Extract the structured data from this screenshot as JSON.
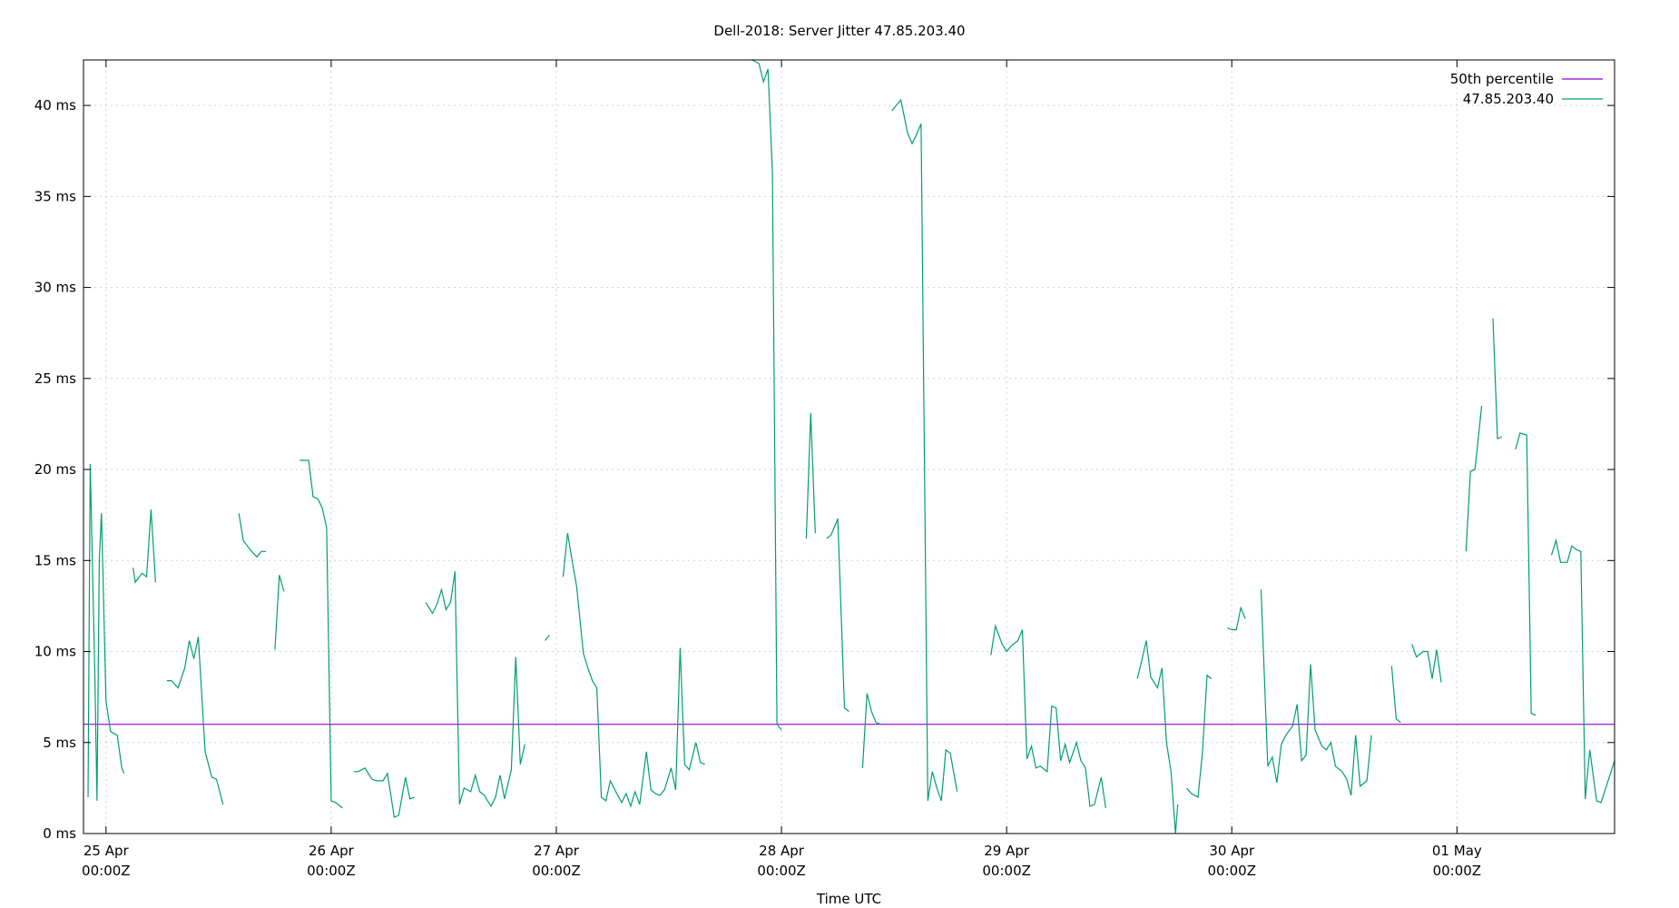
{
  "chart_data": {
    "type": "line",
    "title": "Dell-2018: Server Jitter 47.85.203.40",
    "xlabel": "Time UTC",
    "ylabel": "",
    "x_unit": "days since 25 Apr 00:00Z",
    "xlim": [
      -0.1,
      6.7
    ],
    "ylim": [
      0,
      42.5
    ],
    "y_ticks": [
      0,
      5,
      10,
      15,
      20,
      25,
      30,
      35,
      40
    ],
    "y_tick_labels": [
      "0 ms",
      "5 ms",
      "10 ms",
      "15 ms",
      "20 ms",
      "25 ms",
      "30 ms",
      "35 ms",
      "40 ms"
    ],
    "x_ticks": [
      0,
      1,
      2,
      3,
      4,
      5,
      6
    ],
    "x_tick_labels": [
      [
        "25 Apr",
        "00:00Z"
      ],
      [
        "26 Apr",
        "00:00Z"
      ],
      [
        "27 Apr",
        "00:00Z"
      ],
      [
        "28 Apr",
        "00:00Z"
      ],
      [
        "29 Apr",
        "00:00Z"
      ],
      [
        "30 Apr",
        "00:00Z"
      ],
      [
        "01 May",
        "00:00Z"
      ]
    ],
    "grid": true,
    "legend_position": "top-right",
    "series": [
      {
        "name": "50th percentile",
        "color": "#9400d3",
        "segments": [
          [
            [
              -0.1,
              6.0
            ],
            [
              6.7,
              6.0
            ]
          ]
        ]
      },
      {
        "name": "47.85.203.40",
        "color": "#009e73",
        "segments": [
          [
            [
              -0.08,
              2.0
            ],
            [
              -0.07,
              20.3
            ],
            [
              -0.05,
              9.0
            ],
            [
              -0.04,
              1.8
            ],
            [
              -0.03,
              15.0
            ],
            [
              -0.02,
              17.6
            ],
            [
              0.0,
              7.3
            ],
            [
              0.02,
              5.6
            ],
            [
              0.05,
              5.4
            ],
            [
              0.07,
              3.6
            ],
            [
              0.08,
              3.3
            ]
          ],
          [
            [
              0.12,
              14.6
            ],
            [
              0.13,
              13.8
            ],
            [
              0.16,
              14.3
            ],
            [
              0.18,
              14.1
            ],
            [
              0.2,
              17.8
            ],
            [
              0.22,
              13.8
            ]
          ],
          [
            [
              0.27,
              8.4
            ],
            [
              0.29,
              8.4
            ],
            [
              0.32,
              8.0
            ],
            [
              0.35,
              9.1
            ],
            [
              0.37,
              10.6
            ],
            [
              0.39,
              9.6
            ],
            [
              0.41,
              10.8
            ],
            [
              0.44,
              4.5
            ],
            [
              0.47,
              3.1
            ],
            [
              0.49,
              3.0
            ],
            [
              0.52,
              1.6
            ]
          ],
          [
            [
              0.59,
              17.6
            ],
            [
              0.61,
              16.1
            ],
            [
              0.64,
              15.6
            ],
            [
              0.67,
              15.2
            ],
            [
              0.69,
              15.5
            ],
            [
              0.71,
              15.5
            ]
          ],
          [
            [
              0.75,
              10.1
            ],
            [
              0.77,
              14.2
            ],
            [
              0.79,
              13.3
            ]
          ],
          [
            [
              0.86,
              20.5
            ],
            [
              0.9,
              20.5
            ],
            [
              0.92,
              18.5
            ],
            [
              0.94,
              18.4
            ],
            [
              0.96,
              17.9
            ],
            [
              0.98,
              16.8
            ],
            [
              1.0,
              1.8
            ],
            [
              1.02,
              1.7
            ],
            [
              1.05,
              1.4
            ]
          ],
          [
            [
              1.1,
              3.4
            ],
            [
              1.12,
              3.4
            ],
            [
              1.15,
              3.6
            ],
            [
              1.18,
              3.0
            ],
            [
              1.2,
              2.9
            ],
            [
              1.23,
              2.9
            ],
            [
              1.25,
              3.3
            ],
            [
              1.28,
              0.9
            ],
            [
              1.3,
              1.0
            ],
            [
              1.33,
              3.1
            ],
            [
              1.35,
              1.9
            ],
            [
              1.37,
              2.0
            ]
          ],
          [
            [
              1.42,
              12.7
            ],
            [
              1.45,
              12.1
            ],
            [
              1.47,
              12.6
            ],
            [
              1.49,
              13.4
            ],
            [
              1.51,
              12.3
            ],
            [
              1.53,
              12.7
            ],
            [
              1.55,
              14.4
            ],
            [
              1.57,
              1.6
            ],
            [
              1.59,
              2.5
            ],
            [
              1.62,
              2.3
            ],
            [
              1.64,
              3.2
            ],
            [
              1.66,
              2.3
            ],
            [
              1.68,
              2.1
            ],
            [
              1.71,
              1.5
            ],
            [
              1.73,
              2.0
            ],
            [
              1.75,
              3.2
            ],
            [
              1.77,
              1.9
            ],
            [
              1.8,
              3.5
            ],
            [
              1.82,
              9.7
            ],
            [
              1.84,
              3.8
            ],
            [
              1.86,
              4.9
            ]
          ],
          [
            [
              1.95,
              10.6
            ],
            [
              1.97,
              10.9
            ]
          ],
          [
            [
              2.03,
              14.1
            ],
            [
              2.05,
              16.5
            ],
            [
              2.07,
              15.0
            ],
            [
              2.09,
              13.6
            ],
            [
              2.12,
              9.9
            ],
            [
              2.14,
              9.1
            ],
            [
              2.16,
              8.4
            ],
            [
              2.18,
              8.0
            ],
            [
              2.2,
              2.0
            ],
            [
              2.22,
              1.8
            ],
            [
              2.24,
              2.9
            ],
            [
              2.26,
              2.4
            ],
            [
              2.29,
              1.7
            ],
            [
              2.31,
              2.2
            ],
            [
              2.33,
              1.5
            ],
            [
              2.35,
              2.3
            ],
            [
              2.37,
              1.6
            ],
            [
              2.4,
              4.5
            ],
            [
              2.42,
              2.4
            ],
            [
              2.44,
              2.2
            ],
            [
              2.46,
              2.1
            ],
            [
              2.48,
              2.4
            ],
            [
              2.51,
              3.6
            ],
            [
              2.53,
              2.4
            ],
            [
              2.55,
              10.2
            ],
            [
              2.57,
              3.8
            ],
            [
              2.59,
              3.5
            ],
            [
              2.62,
              5.0
            ],
            [
              2.64,
              3.9
            ],
            [
              2.66,
              3.8
            ]
          ],
          [
            [
              2.87,
              42.5
            ],
            [
              2.9,
              42.3
            ],
            [
              2.92,
              41.3
            ],
            [
              2.94,
              42.0
            ],
            [
              2.96,
              36.3
            ],
            [
              2.98,
              6.0
            ],
            [
              3.0,
              5.7
            ]
          ],
          [
            [
              3.11,
              16.2
            ],
            [
              3.13,
              23.1
            ],
            [
              3.15,
              16.5
            ]
          ],
          [
            [
              3.2,
              16.2
            ],
            [
              3.22,
              16.4
            ],
            [
              3.25,
              17.3
            ],
            [
              3.28,
              6.9
            ],
            [
              3.3,
              6.7
            ]
          ],
          [
            [
              3.36,
              3.6
            ],
            [
              3.38,
              7.7
            ],
            [
              3.4,
              6.7
            ],
            [
              3.42,
              6.1
            ],
            [
              3.44,
              6.0
            ]
          ],
          [
            [
              3.49,
              39.7
            ],
            [
              3.53,
              40.3
            ],
            [
              3.56,
              38.5
            ],
            [
              3.58,
              37.9
            ],
            [
              3.6,
              38.4
            ],
            [
              3.62,
              39.0
            ],
            [
              3.65,
              1.8
            ],
            [
              3.67,
              3.4
            ],
            [
              3.69,
              2.5
            ],
            [
              3.71,
              1.8
            ],
            [
              3.73,
              4.6
            ],
            [
              3.75,
              4.4
            ],
            [
              3.78,
              2.3
            ]
          ],
          [
            [
              3.93,
              9.8
            ],
            [
              3.95,
              11.4
            ],
            [
              3.98,
              10.4
            ],
            [
              4.0,
              10.0
            ],
            [
              4.02,
              10.3
            ],
            [
              4.05,
              10.6
            ],
            [
              4.07,
              11.2
            ],
            [
              4.09,
              4.1
            ],
            [
              4.11,
              4.8
            ],
            [
              4.13,
              3.6
            ],
            [
              4.15,
              3.7
            ],
            [
              4.18,
              3.4
            ],
            [
              4.2,
              7.0
            ],
            [
              4.22,
              6.9
            ],
            [
              4.24,
              4.0
            ],
            [
              4.26,
              4.9
            ],
            [
              4.28,
              3.9
            ],
            [
              4.31,
              5.0
            ],
            [
              4.33,
              4.0
            ],
            [
              4.35,
              3.6
            ],
            [
              4.37,
              1.5
            ],
            [
              4.39,
              1.6
            ],
            [
              4.42,
              3.1
            ],
            [
              4.44,
              1.4
            ]
          ],
          [
            [
              4.58,
              8.5
            ],
            [
              4.6,
              9.5
            ],
            [
              4.62,
              10.6
            ],
            [
              4.64,
              8.6
            ],
            [
              4.67,
              8.0
            ],
            [
              4.69,
              9.1
            ],
            [
              4.71,
              5.0
            ],
            [
              4.73,
              3.4
            ],
            [
              4.75,
              0.0
            ],
            [
              4.76,
              1.6
            ]
          ],
          [
            [
              4.8,
              2.5
            ],
            [
              4.82,
              2.2
            ],
            [
              4.85,
              2.0
            ],
            [
              4.87,
              4.5
            ],
            [
              4.89,
              8.7
            ],
            [
              4.91,
              8.5
            ]
          ],
          [
            [
              4.98,
              11.3
            ],
            [
              5.0,
              11.2
            ],
            [
              5.02,
              11.2
            ],
            [
              5.04,
              12.4
            ],
            [
              5.06,
              11.8
            ]
          ],
          [
            [
              5.13,
              13.4
            ],
            [
              5.16,
              3.7
            ],
            [
              5.18,
              4.2
            ],
            [
              5.2,
              2.8
            ],
            [
              5.22,
              4.9
            ],
            [
              5.24,
              5.4
            ],
            [
              5.27,
              5.9
            ],
            [
              5.29,
              7.1
            ],
            [
              5.31,
              4.0
            ],
            [
              5.33,
              4.3
            ],
            [
              5.35,
              9.3
            ],
            [
              5.37,
              5.7
            ],
            [
              5.4,
              4.8
            ],
            [
              5.42,
              4.6
            ],
            [
              5.44,
              5.0
            ],
            [
              5.46,
              3.7
            ],
            [
              5.49,
              3.4
            ],
            [
              5.51,
              3.0
            ],
            [
              5.53,
              2.1
            ],
            [
              5.55,
              5.4
            ],
            [
              5.57,
              2.6
            ],
            [
              5.6,
              2.9
            ],
            [
              5.62,
              5.4
            ]
          ],
          [
            [
              5.71,
              9.2
            ],
            [
              5.73,
              6.3
            ],
            [
              5.75,
              6.1
            ]
          ],
          [
            [
              5.8,
              10.4
            ],
            [
              5.82,
              9.7
            ],
            [
              5.85,
              10.0
            ],
            [
              5.87,
              10.0
            ],
            [
              5.89,
              8.5
            ],
            [
              5.91,
              10.1
            ],
            [
              5.93,
              8.3
            ]
          ],
          [
            [
              6.04,
              15.5
            ],
            [
              6.06,
              19.9
            ],
            [
              6.08,
              20.0
            ],
            [
              6.11,
              23.5
            ]
          ],
          [
            [
              6.16,
              28.3
            ],
            [
              6.18,
              21.7
            ],
            [
              6.2,
              21.8
            ]
          ],
          [
            [
              6.26,
              21.1
            ],
            [
              6.28,
              22.0
            ],
            [
              6.31,
              21.9
            ],
            [
              6.33,
              6.6
            ],
            [
              6.35,
              6.5
            ]
          ],
          [
            [
              6.42,
              15.3
            ],
            [
              6.44,
              16.1
            ],
            [
              6.46,
              14.9
            ],
            [
              6.49,
              14.9
            ],
            [
              6.51,
              15.8
            ],
            [
              6.53,
              15.6
            ],
            [
              6.55,
              15.5
            ],
            [
              6.57,
              1.9
            ],
            [
              6.59,
              4.6
            ],
            [
              6.62,
              1.8
            ],
            [
              6.64,
              1.7
            ],
            [
              6.7,
              4.0
            ]
          ]
        ]
      }
    ]
  }
}
